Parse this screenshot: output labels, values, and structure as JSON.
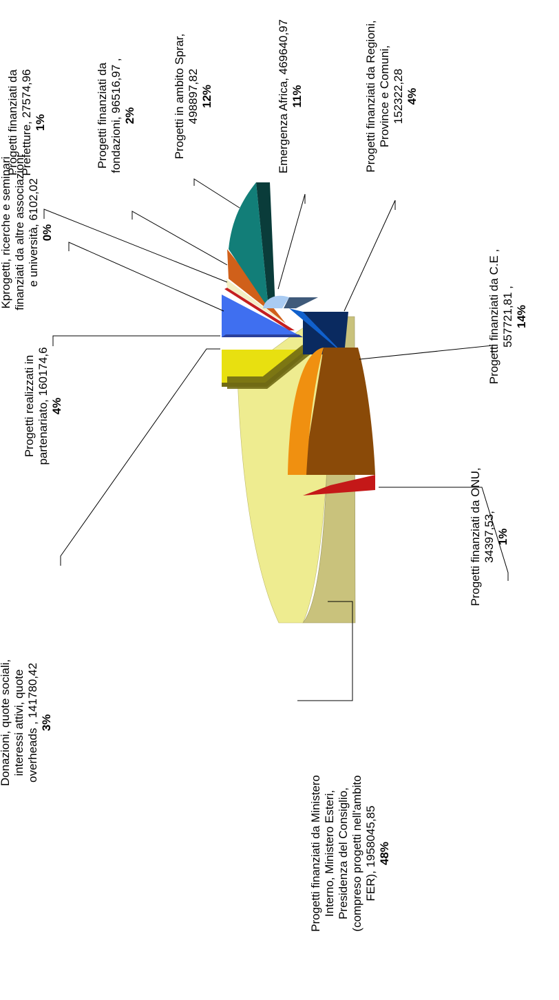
{
  "chart_data": {
    "type": "pie",
    "title": "",
    "orientation": "rotated-90",
    "style": "3d-exploded",
    "slices": [
      {
        "name": "Progetti finanziati da Ministero Interno, Ministero Esteri, Presidenza del Consiglio, (compreso progetti nell'ambito FER)",
        "value": 1958045.85,
        "value_label": "1958045,85",
        "percent": "48%",
        "color": "#eeec90",
        "side_color": "#c9c27c",
        "label_lines": [
          "Progetti finanziati da Ministero",
          "Interno, Ministero Esteri,",
          "Presidenza del Consiglio,",
          "(compreso progetti nell'ambito",
          "FER), 1958045,85",
          "48%"
        ]
      },
      {
        "name": "Donazioni, quote sociali, interessi attivi, quote overheads",
        "value": 141780.42,
        "value_label": "141780,42",
        "percent": "3%",
        "color": "#e8e010",
        "side_color": "#706a14",
        "label_lines": [
          "Donazioni, quote sociali,",
          "interessi attivi, quote",
          "overheads , 141780,42",
          "3%"
        ]
      },
      {
        "name": "Progetti realizzati in partenariato",
        "value": 160174.6,
        "value_label": "160174,6",
        "percent": "4%",
        "color": "#3f6ff0",
        "side_color": "#2a3f9a",
        "label_lines": [
          "Progetti realizzati in",
          "partenariato, 160174,6",
          "4%"
        ]
      },
      {
        "name": "Kprogetti, ricerche e seminari finanziati da altre associazioni e università",
        "value": 6102.02,
        "value_label": "6102,02",
        "percent": "0%",
        "color": "#c42020",
        "side_color": "#801010",
        "label_lines": [
          "Kprogetti, ricerche e seminari",
          "finanziati da altre associazioni",
          "e università, 6102,02",
          "0%"
        ]
      },
      {
        "name": "Progetti finanziati da Prefetture",
        "value": 27574.96,
        "value_label": "27574,96",
        "percent": "1%",
        "color": "#f3efc4",
        "side_color": "#d0caa0",
        "label_lines": [
          "Progetti finanziati da",
          "Prefetture, 27574,96",
          "1%"
        ]
      },
      {
        "name": "Progetti finanziati da fondazioni",
        "value": 96516.97,
        "value_label": "96516,97",
        "percent": "2%",
        "color": "#d0601a",
        "side_color": "#8a3c10",
        "label_lines": [
          "Progetti finanziati da",
          "fondazioni, 96516,97 ,",
          "2%"
        ]
      },
      {
        "name": "Progetti in ambito Sprar",
        "value": 498897.82,
        "value_label": "498897,82",
        "percent": "12%",
        "color": "#127e78",
        "side_color": "#0a3c3a",
        "label_lines": [
          "Progetti in ambito Sprar,",
          "498897,82",
          "12%"
        ]
      },
      {
        "name": "Emergenza Africa",
        "value": 469640.97,
        "value_label": "469640,97",
        "percent": "11%",
        "color": "#a9cbf2",
        "side_color": "#3f5a7a",
        "label_lines": [
          "Emergenza Africa, 469640,97",
          "11%"
        ]
      },
      {
        "name": "Progetti finanziati da Regioni, Province e Comuni",
        "value": 152322.28,
        "value_label": "152322,28",
        "percent": "4%",
        "color": "#1060cc",
        "side_color": "#0a2a60",
        "label_lines": [
          "Progetti finanziati da Regioni,",
          "Province e Comuni,",
          "152322,28",
          "4%"
        ]
      },
      {
        "name": "Progetti finanziati da C.E",
        "value": 557721.81,
        "value_label": "557721,81",
        "percent": "14%",
        "color": "#f09010",
        "side_color": "#8a4a08",
        "label_lines": [
          "Progetti finanziati da C.E ,",
          "557721,81 ,",
          "14%"
        ]
      },
      {
        "name": "Progetti finanziati da ONU",
        "value": 34397.53,
        "value_label": "34397,53",
        "percent": "1%",
        "color": "#c41818",
        "side_color": "#6a0a0a",
        "label_lines": [
          "Progetti finanziati da ONU,",
          "34397,53,",
          "1%"
        ]
      }
    ],
    "legend": "none"
  }
}
